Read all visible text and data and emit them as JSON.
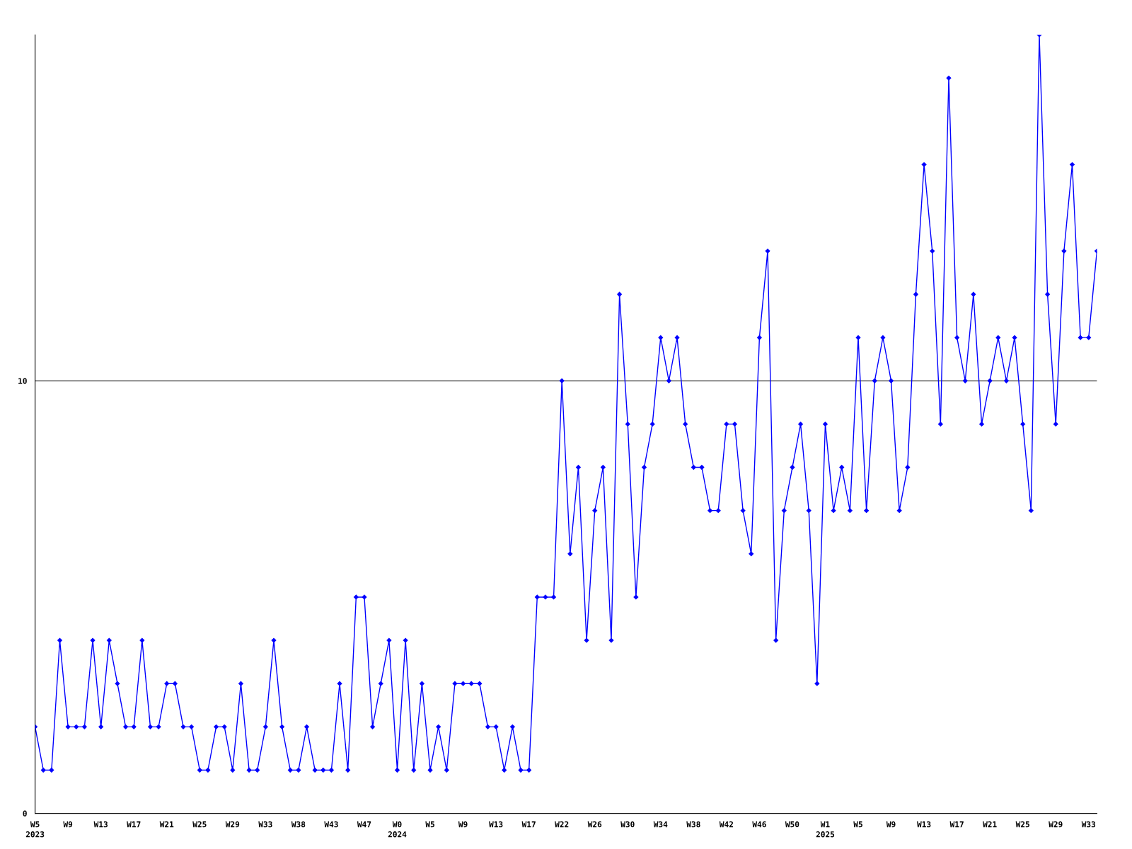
{
  "chart_data": {
    "type": "line",
    "categories": [
      "W5\n2023",
      null,
      null,
      null,
      "W9",
      null,
      null,
      null,
      "W13",
      null,
      null,
      null,
      "W17",
      null,
      null,
      null,
      "W21",
      null,
      null,
      null,
      "W25",
      null,
      null,
      null,
      "W29",
      null,
      null,
      null,
      "W33",
      null,
      null,
      null,
      "W38",
      null,
      null,
      null,
      "W43",
      null,
      null,
      null,
      "W47",
      null,
      null,
      null,
      "W0\n2024",
      null,
      null,
      null,
      "W5",
      null,
      null,
      null,
      "W9",
      null,
      null,
      null,
      "W13",
      null,
      null,
      null,
      "W17",
      null,
      null,
      null,
      "W22",
      null,
      null,
      null,
      "W26",
      null,
      null,
      null,
      "W30",
      null,
      null,
      null,
      "W34",
      null,
      null,
      null,
      "W38",
      null,
      null,
      null,
      "W42",
      null,
      null,
      null,
      "W46",
      null,
      null,
      null,
      "W50",
      null,
      null,
      null,
      "W1\n2025",
      null,
      null,
      null,
      "W5",
      null,
      null,
      null,
      "W9",
      null,
      null,
      null,
      "W13",
      null,
      null,
      null,
      "W17",
      null,
      null,
      null,
      "W21",
      null,
      null,
      null,
      "W25",
      null,
      null,
      null,
      "W29",
      null,
      null,
      null,
      "W33",
      null
    ],
    "series": [
      {
        "color": "#0000ff",
        "values": [
          2,
          1,
          1,
          4,
          2,
          2,
          2,
          4,
          2,
          4,
          3,
          2,
          2,
          4,
          2,
          2,
          3,
          3,
          2,
          2,
          1,
          1,
          2,
          2,
          1,
          3,
          1,
          1,
          2,
          4,
          2,
          1,
          1,
          2,
          1,
          1,
          1,
          3,
          1,
          5,
          5,
          2,
          3,
          4,
          1,
          4,
          1,
          3,
          1,
          2,
          1,
          3,
          3,
          3,
          3,
          2,
          2,
          1,
          2,
          1,
          1,
          5,
          5,
          5,
          10,
          6,
          8,
          4,
          7,
          8,
          4,
          12,
          9,
          5,
          8,
          9,
          11,
          10,
          11,
          9,
          8,
          8,
          7,
          7,
          9,
          9,
          7,
          6,
          11,
          13,
          4,
          7,
          8,
          9,
          7,
          3,
          9,
          7,
          8,
          7,
          11,
          7,
          10,
          11,
          10,
          7,
          8,
          12,
          15,
          13,
          9,
          17,
          11,
          10,
          12,
          9,
          10,
          11,
          10,
          11,
          9,
          7,
          18,
          12,
          9,
          13,
          15,
          11,
          11,
          13
        ]
      }
    ],
    "ylim": [
      0,
      18
    ],
    "yticks": [
      0,
      10
    ],
    "grid": "y",
    "marker": "diamond",
    "line_style": "solid",
    "legend": false
  }
}
